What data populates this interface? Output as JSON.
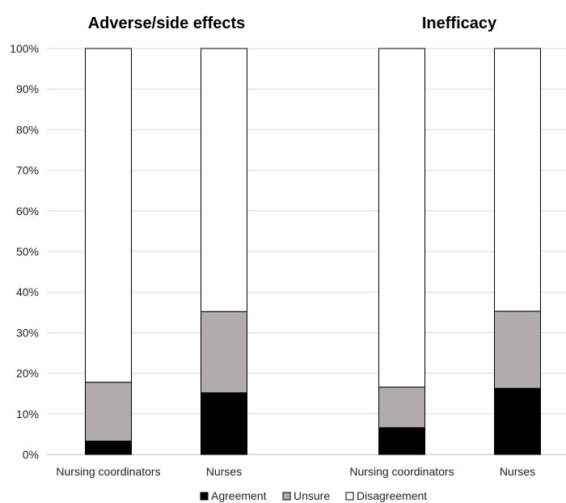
{
  "chart_data": {
    "type": "bar",
    "stacked": true,
    "y_ticks": [
      "0%",
      "10%",
      "20%",
      "30%",
      "40%",
      "50%",
      "60%",
      "70%",
      "80%",
      "90%",
      "100%"
    ],
    "ylim": [
      0,
      100
    ],
    "grid": true,
    "legend_position": "bottom",
    "series": [
      {
        "name": "Agreement",
        "color": "#000000"
      },
      {
        "name": "Unsure",
        "color": "#b0acac"
      },
      {
        "name": "Disagreement",
        "color": "#ffffff"
      }
    ],
    "panels": [
      {
        "title": "Adverse/side effects",
        "categories": [
          "Nursing coordinators",
          "Nurses"
        ],
        "values": {
          "Agreement": [
            3.3,
            15.2
          ],
          "Unsure": [
            14.5,
            20.0
          ],
          "Disagreement": [
            82.2,
            64.8
          ]
        }
      },
      {
        "title": "Inefficacy",
        "categories": [
          "Nursing coordinators",
          "Nurses"
        ],
        "values": {
          "Agreement": [
            6.6,
            16.3
          ],
          "Unsure": [
            10.0,
            19.0
          ],
          "Disagreement": [
            83.4,
            64.7
          ]
        }
      }
    ]
  }
}
